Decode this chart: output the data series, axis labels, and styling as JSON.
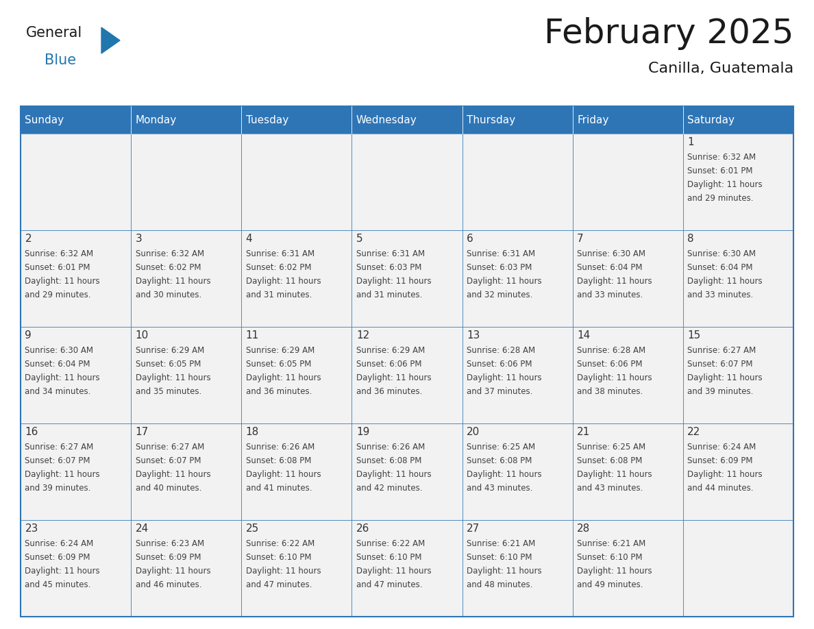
{
  "title": "February 2025",
  "subtitle": "Canilla, Guatemala",
  "header_bg": "#2E75B6",
  "header_text_color": "#FFFFFF",
  "cell_bg": "#F2F2F2",
  "border_color": "#2E75B6",
  "days_of_week": [
    "Sunday",
    "Monday",
    "Tuesday",
    "Wednesday",
    "Thursday",
    "Friday",
    "Saturday"
  ],
  "cell_text_color": "#404040",
  "day_num_color": "#333333",
  "calendar_data": [
    [
      null,
      null,
      null,
      null,
      null,
      null,
      1
    ],
    [
      2,
      3,
      4,
      5,
      6,
      7,
      8
    ],
    [
      9,
      10,
      11,
      12,
      13,
      14,
      15
    ],
    [
      16,
      17,
      18,
      19,
      20,
      21,
      22
    ],
    [
      23,
      24,
      25,
      26,
      27,
      28,
      null
    ]
  ],
  "sunrise_data": {
    "1": "6:32 AM",
    "2": "6:32 AM",
    "3": "6:32 AM",
    "4": "6:31 AM",
    "5": "6:31 AM",
    "6": "6:31 AM",
    "7": "6:30 AM",
    "8": "6:30 AM",
    "9": "6:30 AM",
    "10": "6:29 AM",
    "11": "6:29 AM",
    "12": "6:29 AM",
    "13": "6:28 AM",
    "14": "6:28 AM",
    "15": "6:27 AM",
    "16": "6:27 AM",
    "17": "6:27 AM",
    "18": "6:26 AM",
    "19": "6:26 AM",
    "20": "6:25 AM",
    "21": "6:25 AM",
    "22": "6:24 AM",
    "23": "6:24 AM",
    "24": "6:23 AM",
    "25": "6:22 AM",
    "26": "6:22 AM",
    "27": "6:21 AM",
    "28": "6:21 AM"
  },
  "sunset_data": {
    "1": "6:01 PM",
    "2": "6:01 PM",
    "3": "6:02 PM",
    "4": "6:02 PM",
    "5": "6:03 PM",
    "6": "6:03 PM",
    "7": "6:04 PM",
    "8": "6:04 PM",
    "9": "6:04 PM",
    "10": "6:05 PM",
    "11": "6:05 PM",
    "12": "6:06 PM",
    "13": "6:06 PM",
    "14": "6:06 PM",
    "15": "6:07 PM",
    "16": "6:07 PM",
    "17": "6:07 PM",
    "18": "6:08 PM",
    "19": "6:08 PM",
    "20": "6:08 PM",
    "21": "6:08 PM",
    "22": "6:09 PM",
    "23": "6:09 PM",
    "24": "6:09 PM",
    "25": "6:10 PM",
    "26": "6:10 PM",
    "27": "6:10 PM",
    "28": "6:10 PM"
  },
  "daylight_data": {
    "1": "11 hours and 29 minutes.",
    "2": "11 hours and 29 minutes.",
    "3": "11 hours and 30 minutes.",
    "4": "11 hours and 31 minutes.",
    "5": "11 hours and 31 minutes.",
    "6": "11 hours and 32 minutes.",
    "7": "11 hours and 33 minutes.",
    "8": "11 hours and 33 minutes.",
    "9": "11 hours and 34 minutes.",
    "10": "11 hours and 35 minutes.",
    "11": "11 hours and 36 minutes.",
    "12": "11 hours and 36 minutes.",
    "13": "11 hours and 37 minutes.",
    "14": "11 hours and 38 minutes.",
    "15": "11 hours and 39 minutes.",
    "16": "11 hours and 39 minutes.",
    "17": "11 hours and 40 minutes.",
    "18": "11 hours and 41 minutes.",
    "19": "11 hours and 42 minutes.",
    "20": "11 hours and 43 minutes.",
    "21": "11 hours and 43 minutes.",
    "22": "11 hours and 44 minutes.",
    "23": "11 hours and 45 minutes.",
    "24": "11 hours and 46 minutes.",
    "25": "11 hours and 47 minutes.",
    "26": "11 hours and 47 minutes.",
    "27": "11 hours and 48 minutes.",
    "28": "11 hours and 49 minutes."
  },
  "logo_general_color": "#1a1a1a",
  "logo_blue_color": "#2176AE",
  "logo_triangle_color": "#2176AE",
  "title_color": "#1a1a1a",
  "subtitle_color": "#1a1a1a"
}
